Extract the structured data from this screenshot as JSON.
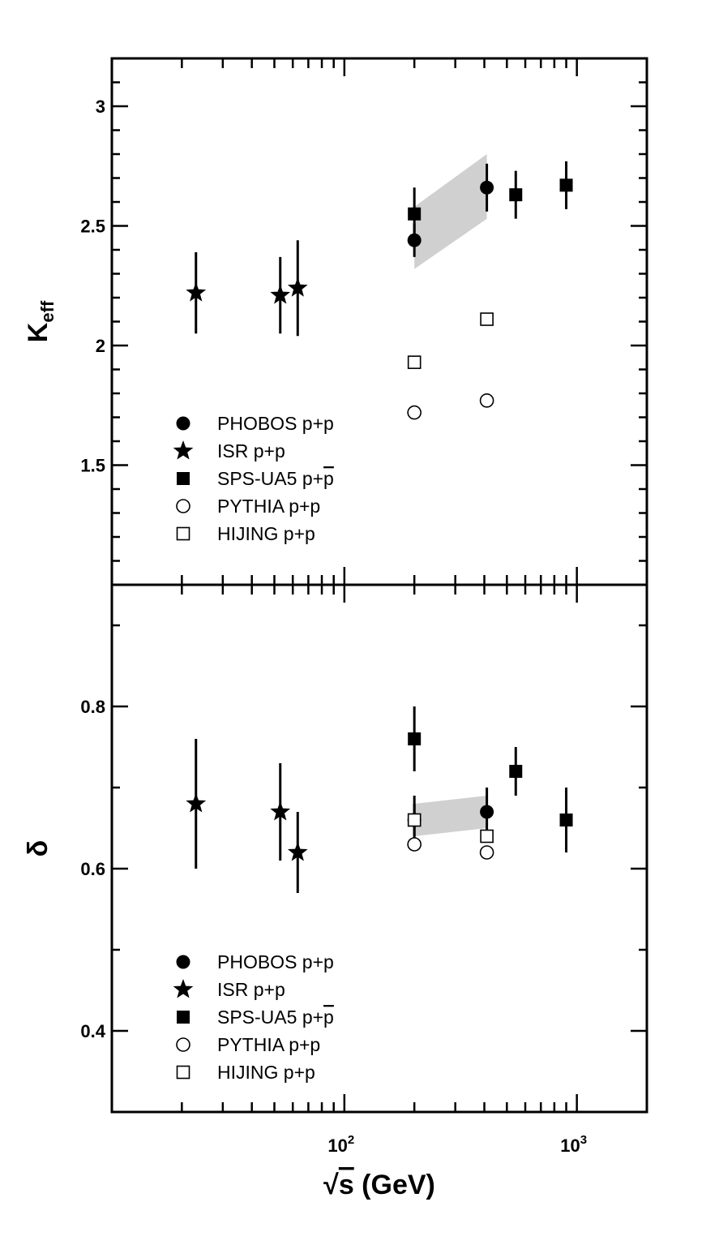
{
  "chart_data": [
    {
      "type": "scatter",
      "panel": "top",
      "x_scale": "log",
      "xlim": [
        10,
        2000
      ],
      "ylim": [
        1.0,
        3.2
      ],
      "ylabel_main": "K",
      "ylabel_sub": "eff",
      "yticks": [
        "1.5",
        "2",
        "2.5",
        "3"
      ],
      "ytick_values": [
        1.5,
        2,
        2.5,
        3
      ],
      "band": {
        "x": [
          200,
          410
        ],
        "lower": [
          2.32,
          2.53
        ],
        "upper": [
          2.58,
          2.8
        ]
      },
      "series": [
        {
          "name": "PHOBOS p+p",
          "marker": "filled-circle",
          "points": [
            {
              "x": 200,
              "y": 2.44,
              "err": 0.07
            },
            {
              "x": 410,
              "y": 2.66,
              "err": 0.1
            }
          ]
        },
        {
          "name": "ISR p+p",
          "marker": "star",
          "points": [
            {
              "x": 23,
              "y": 2.22,
              "err": 0.17
            },
            {
              "x": 53,
              "y": 2.21,
              "err": 0.16
            },
            {
              "x": 63,
              "y": 2.24,
              "err": 0.2
            }
          ]
        },
        {
          "name": "SPS-UA5 p+",
          "name_bar": "p",
          "marker": "filled-square",
          "points": [
            {
              "x": 200,
              "y": 2.55,
              "err": 0.11
            },
            {
              "x": 546,
              "y": 2.63,
              "err": 0.1
            },
            {
              "x": 900,
              "y": 2.67,
              "err": 0.1
            }
          ]
        },
        {
          "name": "PYTHIA p+p",
          "marker": "open-circle",
          "points": [
            {
              "x": 200,
              "y": 1.72,
              "err": 0
            },
            {
              "x": 410,
              "y": 1.77,
              "err": 0
            }
          ]
        },
        {
          "name": "HIJING p+p",
          "marker": "open-square",
          "points": [
            {
              "x": 200,
              "y": 1.93,
              "err": 0
            },
            {
              "x": 410,
              "y": 2.11,
              "err": 0
            }
          ]
        }
      ]
    },
    {
      "type": "scatter",
      "panel": "bottom",
      "x_scale": "log",
      "xlim": [
        10,
        2000
      ],
      "ylim": [
        0.3,
        0.95
      ],
      "ylabel_main": "δ",
      "ylabel_sub": "",
      "yticks": [
        "0.4",
        "0.6",
        "0.8"
      ],
      "ytick_values": [
        0.4,
        0.6,
        0.8
      ],
      "xlabel_root": "√",
      "xlabel_s": "s",
      "xlabel_rest": " (GeV)",
      "xticks": [
        {
          "base": "10",
          "exp": "2",
          "value": 100
        },
        {
          "base": "10",
          "exp": "3",
          "value": 1000
        }
      ],
      "band": {
        "x": [
          200,
          410
        ],
        "lower": [
          0.64,
          0.65
        ],
        "upper": [
          0.68,
          0.69
        ]
      },
      "series": [
        {
          "name": "PHOBOS p+p",
          "marker": "filled-circle",
          "points": [
            {
              "x": 200,
              "y": 0.66,
              "err": 0.03
            },
            {
              "x": 410,
              "y": 0.67,
              "err": 0.03
            }
          ]
        },
        {
          "name": "ISR p+p",
          "marker": "star",
          "points": [
            {
              "x": 23,
              "y": 0.68,
              "err": 0.08
            },
            {
              "x": 53,
              "y": 0.67,
              "err": 0.06
            },
            {
              "x": 63,
              "y": 0.62,
              "err": 0.05
            }
          ]
        },
        {
          "name": "SPS-UA5 p+",
          "name_bar": "p",
          "marker": "filled-square",
          "points": [
            {
              "x": 200,
              "y": 0.76,
              "err": 0.04
            },
            {
              "x": 200,
              "y": 0.66,
              "err": 0.02
            },
            {
              "x": 546,
              "y": 0.72,
              "err": 0.03
            },
            {
              "x": 900,
              "y": 0.66,
              "err": 0.04
            }
          ]
        },
        {
          "name": "PYTHIA p+p",
          "marker": "open-circle",
          "points": [
            {
              "x": 200,
              "y": 0.63,
              "err": 0
            },
            {
              "x": 410,
              "y": 0.62,
              "err": 0
            }
          ]
        },
        {
          "name": "HIJING p+p",
          "marker": "open-square",
          "points": [
            {
              "x": 200,
              "y": 0.66,
              "err": 0
            },
            {
              "x": 410,
              "y": 0.64,
              "err": 0
            }
          ]
        }
      ]
    }
  ]
}
